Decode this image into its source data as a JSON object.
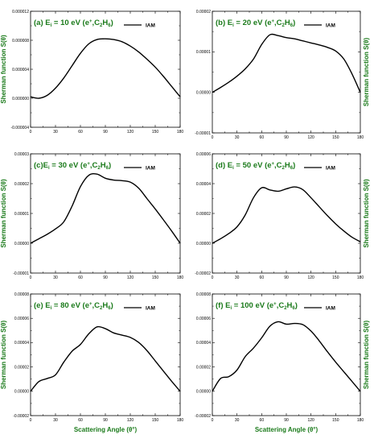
{
  "figure": {
    "ylabel": "Sherman function S(θ)",
    "xlabel": "Scattering Angle (θ°)"
  },
  "colors": {
    "text_green": "#1a7a1a",
    "line": "#000000"
  },
  "chart_data": [
    {
      "type": "line",
      "title": {
        "prefix": "(a) E",
        "sub1": "i",
        "mid": " = 10 eV (e",
        "sup": "+",
        "mid2": ",C",
        "sub2": "2",
        "mid3": "H",
        "sub3": "6",
        "end": ")"
      },
      "series": [
        {
          "name": "IAM",
          "x": [
            0,
            10,
            20,
            30,
            40,
            50,
            60,
            70,
            80,
            90,
            100,
            110,
            120,
            130,
            140,
            150,
            160,
            170,
            180
          ],
          "y": [
            2e-07,
            0,
            4e-07,
            1.4e-06,
            2.8e-06,
            4.5e-06,
            6.2e-06,
            7.5e-06,
            8.1e-06,
            8.2e-06,
            8.1e-06,
            7.8e-06,
            7.2e-06,
            6.4e-06,
            5.4e-06,
            4.3e-06,
            3e-06,
            1.6e-06,
            2e-07
          ]
        }
      ],
      "xlim": [
        0,
        180
      ],
      "ylim": [
        -4e-06,
        1.2e-05
      ],
      "xticks": [
        "0",
        "30",
        "60",
        "90",
        "120",
        "150",
        "180"
      ],
      "yticks": [
        "-0.000004",
        "0.000000",
        "0.000004",
        "0.000008",
        "0.000012"
      ],
      "ytick_values": [
        -4e-06,
        0,
        4e-06,
        8e-06,
        1.2e-05
      ],
      "ylabel_side": "left"
    },
    {
      "type": "line",
      "title": {
        "prefix": "(b) E",
        "sub1": "i",
        "mid": " = 20 eV (e",
        "sup": "+",
        "mid2": ",C",
        "sub2": "2",
        "mid3": "H",
        "sub3": "6",
        "end": ")"
      },
      "series": [
        {
          "name": "IAM",
          "x": [
            0,
            10,
            20,
            30,
            40,
            50,
            60,
            70,
            80,
            90,
            100,
            110,
            120,
            130,
            140,
            150,
            160,
            170,
            180
          ],
          "y": [
            0,
            1.2e-06,
            2.5e-06,
            4e-06,
            5.8e-06,
            8.2e-06,
            1.18e-05,
            1.42e-05,
            1.4e-05,
            1.35e-05,
            1.32e-05,
            1.27e-05,
            1.22e-05,
            1.17e-05,
            1.11e-05,
            1.02e-05,
            8.2e-06,
            4.5e-06,
            0
          ]
        }
      ],
      "xlim": [
        0,
        180
      ],
      "ylim": [
        -1e-05,
        2e-05
      ],
      "xticks": [
        "0",
        "30",
        "60",
        "90",
        "120",
        "150",
        "180"
      ],
      "yticks": [
        "-0.00001",
        "0.00000",
        "0.00001",
        "0.00002"
      ],
      "ytick_values": [
        -1e-05,
        0,
        1e-05,
        2e-05
      ],
      "ylabel_side": "right"
    },
    {
      "type": "line",
      "title": {
        "prefix": "(c)E",
        "sub1": "i",
        "mid": " = 30 eV (e",
        "sup": "+",
        "mid2": ",C",
        "sub2": "2",
        "mid3": "H",
        "sub3": "6",
        "end": ")"
      },
      "series": [
        {
          "name": "IAM",
          "x": [
            0,
            10,
            20,
            30,
            40,
            50,
            60,
            70,
            80,
            90,
            100,
            110,
            120,
            130,
            140,
            150,
            160,
            170,
            180
          ],
          "y": [
            0,
            1.5e-06,
            3e-06,
            4.8e-06,
            7.2e-06,
            1.25e-05,
            1.9e-05,
            2.28e-05,
            2.32e-05,
            2.18e-05,
            2.12e-05,
            2.1e-05,
            2.05e-05,
            1.85e-05,
            1.5e-05,
            1.15e-05,
            7.8e-06,
            4e-06,
            0
          ]
        }
      ],
      "xlim": [
        0,
        180
      ],
      "ylim": [
        -1e-05,
        3e-05
      ],
      "xticks": [
        "0",
        "30",
        "60",
        "90",
        "120",
        "150",
        "180"
      ],
      "yticks": [
        "-0.00001",
        "0.00000",
        "0.00001",
        "0.00002",
        "0.00003"
      ],
      "ytick_values": [
        -1e-05,
        0,
        1e-05,
        2e-05,
        3e-05
      ],
      "ylabel_side": "left"
    },
    {
      "type": "line",
      "title": {
        "prefix": "(d)  E",
        "sub1": "i",
        "mid": " = 50 eV (e",
        "sup": "+",
        "mid2": ",C",
        "sub2": "2",
        "mid3": "H",
        "sub3": "6",
        "end": ")"
      },
      "series": [
        {
          "name": "IAM",
          "x": [
            0,
            10,
            20,
            30,
            40,
            50,
            60,
            70,
            80,
            90,
            100,
            110,
            120,
            130,
            140,
            150,
            160,
            170,
            180
          ],
          "y": [
            0,
            3e-06,
            6.5e-06,
            1.1e-05,
            1.9e-05,
            3.05e-05,
            3.72e-05,
            3.58e-05,
            3.49e-05,
            3.65e-05,
            3.78e-05,
            3.6e-05,
            3.05e-05,
            2.45e-05,
            1.85e-05,
            1.3e-05,
            8.2e-06,
            4e-06,
            1e-06
          ]
        }
      ],
      "xlim": [
        0,
        180
      ],
      "ylim": [
        -2e-05,
        6e-05
      ],
      "xticks": [
        "0",
        "30",
        "60",
        "90",
        "120",
        "150",
        "180"
      ],
      "yticks": [
        "-0.00002",
        "0.00000",
        "0.00002",
        "0.00004",
        "0.00006"
      ],
      "ytick_values": [
        -2e-05,
        0,
        2e-05,
        4e-05,
        6e-05
      ],
      "ylabel_side": "right"
    },
    {
      "type": "line",
      "title": {
        "prefix": "(e)  E",
        "sub1": "i",
        "mid": " = 80 eV (e",
        "sup": "+",
        "mid2": ",C",
        "sub2": "2",
        "mid3": "H",
        "sub3": "6",
        "end": ")"
      },
      "series": [
        {
          "name": "IAM",
          "x": [
            0,
            10,
            20,
            30,
            40,
            50,
            60,
            70,
            80,
            90,
            100,
            110,
            120,
            130,
            140,
            150,
            160,
            170,
            180
          ],
          "y": [
            0,
            8e-06,
            1.05e-05,
            1.35e-05,
            2.4e-05,
            3.3e-05,
            3.85e-05,
            4.72e-05,
            5.3e-05,
            5.15e-05,
            4.8e-05,
            4.62e-05,
            4.43e-05,
            4.02e-05,
            3.35e-05,
            2.5e-05,
            1.65e-05,
            8e-06,
            0
          ]
        }
      ],
      "xlim": [
        0,
        180
      ],
      "ylim": [
        -2e-05,
        8e-05
      ],
      "xticks": [
        "0",
        "30",
        "60",
        "90",
        "120",
        "150",
        "180"
      ],
      "yticks": [
        "-0.00002",
        "0.00000",
        "0.00002",
        "0.00004",
        "0.00006",
        "0.00008"
      ],
      "ytick_values": [
        -2e-05,
        0,
        2e-05,
        4e-05,
        6e-05,
        8e-05
      ],
      "ylabel_side": "left"
    },
    {
      "type": "line",
      "title": {
        "prefix": "(f)  E",
        "sub1": "i",
        "mid": " = 100 eV (e",
        "sup": "+",
        "mid2": ",C",
        "sub2": "2",
        "mid3": "H",
        "sub3": "6",
        "end": ")"
      },
      "series": [
        {
          "name": "IAM",
          "x": [
            0,
            10,
            20,
            30,
            40,
            50,
            60,
            70,
            80,
            90,
            100,
            110,
            120,
            130,
            140,
            150,
            160,
            170,
            180
          ],
          "y": [
            0,
            1.05e-05,
            1.2e-05,
            1.75e-05,
            2.85e-05,
            3.55e-05,
            4.4e-05,
            5.35e-05,
            5.72e-05,
            5.52e-05,
            5.58e-05,
            5.48e-05,
            4.95e-05,
            4.15e-05,
            3.25e-05,
            2.4e-05,
            1.6e-05,
            8e-06,
            0
          ]
        }
      ],
      "xlim": [
        0,
        180
      ],
      "ylim": [
        -2e-05,
        8e-05
      ],
      "xticks": [
        "0",
        "30",
        "60",
        "90",
        "120",
        "150",
        "180"
      ],
      "yticks": [
        "-0.00002",
        "0.00000",
        "0.00002",
        "0.00004",
        "0.00006",
        "0.00008"
      ],
      "ytick_values": [
        -2e-05,
        0,
        2e-05,
        4e-05,
        6e-05,
        8e-05
      ],
      "ylabel_side": "right"
    }
  ]
}
